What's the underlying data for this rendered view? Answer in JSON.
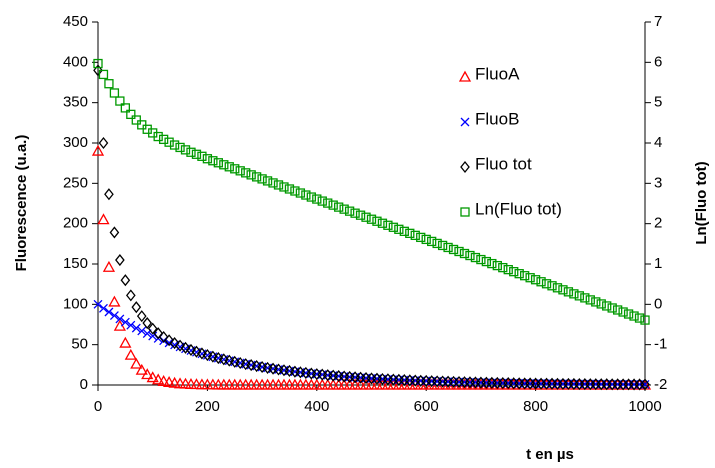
{
  "chart_data": {
    "type": "scatter",
    "xlabel": "t en µs",
    "ylabel": "Fluorescence (u.a.)",
    "y2label": "Ln(Fluo tot)",
    "legend": "upper right",
    "x": [
      0,
      10,
      20,
      30,
      40,
      50,
      60,
      70,
      80,
      90,
      100,
      110,
      120,
      130,
      140,
      150,
      160,
      170,
      180,
      190,
      200,
      210,
      220,
      230,
      240,
      250,
      260,
      270,
      280,
      290,
      300,
      310,
      320,
      330,
      340,
      350,
      360,
      370,
      380,
      390,
      400,
      410,
      420,
      430,
      440,
      450,
      460,
      470,
      480,
      490,
      500,
      510,
      520,
      530,
      540,
      550,
      560,
      570,
      580,
      590,
      600,
      610,
      620,
      630,
      640,
      650,
      660,
      670,
      680,
      690,
      700,
      710,
      720,
      730,
      740,
      750,
      760,
      770,
      780,
      790,
      800,
      810,
      820,
      830,
      840,
      850,
      860,
      870,
      880,
      890,
      900,
      910,
      920,
      930,
      940,
      950,
      960,
      970,
      980,
      990,
      1000
    ],
    "xlim": [
      0,
      1000
    ],
    "xticks": [
      0,
      200,
      400,
      600,
      800,
      1000
    ],
    "ylim": [
      0,
      450
    ],
    "yticks": [
      0,
      50,
      100,
      150,
      200,
      250,
      300,
      350,
      400,
      450
    ],
    "y2lim": [
      -2,
      7
    ],
    "y2ticks": [
      -2,
      -1,
      0,
      1,
      2,
      3,
      4,
      5,
      6,
      7
    ],
    "series": [
      {
        "name": "FluoA",
        "color": "#ff0000",
        "marker": "triangle",
        "values": [
          290,
          205,
          146,
          103,
          73,
          52,
          37,
          26,
          18.4,
          13,
          9.2,
          6.5,
          4.6,
          3.3,
          2.3,
          1.6,
          1.2,
          0.8,
          0.6,
          0.4,
          0.3,
          0.2,
          0.1,
          0.1,
          0.1,
          0,
          0,
          0,
          0,
          0,
          0,
          0,
          0,
          0,
          0,
          0,
          0,
          0,
          0,
          0,
          0,
          0,
          0,
          0,
          0,
          0,
          0,
          0,
          0,
          0,
          0,
          0,
          0,
          0,
          0,
          0,
          0,
          0,
          0,
          0,
          0,
          0,
          0,
          0,
          0,
          0,
          0,
          0,
          0,
          0,
          0,
          0,
          0,
          0,
          0,
          0,
          0,
          0,
          0,
          0,
          0,
          0,
          0,
          0,
          0,
          0,
          0,
          0,
          0,
          0,
          0,
          0,
          0,
          0,
          0,
          0,
          0,
          0,
          0,
          0,
          0
        ]
      },
      {
        "name": "FluoB",
        "color": "#0000ff",
        "marker": "x",
        "values": [
          100,
          95.1,
          90.5,
          86.1,
          81.9,
          77.9,
          74.1,
          70.5,
          67,
          63.8,
          60.7,
          57.7,
          54.9,
          52.2,
          49.7,
          47.2,
          44.9,
          42.7,
          40.7,
          38.7,
          36.8,
          35,
          33.3,
          31.7,
          30.1,
          28.7,
          27.3,
          25.9,
          24.7,
          23.5,
          22.3,
          21.2,
          20.2,
          19.2,
          18.3,
          17.4,
          16.5,
          15.7,
          15,
          14.2,
          13.5,
          12.9,
          12.2,
          11.6,
          11.1,
          10.5,
          10,
          9.5,
          9.1,
          8.6,
          8.2,
          7.8,
          7.4,
          7.1,
          6.7,
          6.4,
          6.1,
          5.8,
          5.5,
          5.2,
          5,
          4.7,
          4.5,
          4.3,
          4.1,
          3.9,
          3.7,
          3.5,
          3.3,
          3.2,
          3,
          2.9,
          2.7,
          2.6,
          2.5,
          2.4,
          2.2,
          2.1,
          2,
          1.9,
          1.8,
          1.7,
          1.7,
          1.6,
          1.5,
          1.4,
          1.4,
          1.3,
          1.2,
          1.2,
          1.1,
          1.1,
          1,
          1,
          0.9,
          0.9,
          0.8,
          0.8,
          0.7,
          0.7,
          0.7
        ]
      },
      {
        "name": "Fluo tot",
        "color": "#000000",
        "marker": "diamond",
        "values": [
          390,
          300,
          236.5,
          189.1,
          154.9,
          129.9,
          111.1,
          96.5,
          85.4,
          76.8,
          69.9,
          64.2,
          59.5,
          55.5,
          52,
          48.8,
          46.1,
          43.5,
          41.3,
          39.1,
          37.1,
          35.2,
          33.4,
          31.8,
          30.2,
          28.7,
          27.3,
          25.9,
          24.7,
          23.5,
          22.3,
          21.2,
          20.2,
          19.2,
          18.3,
          17.4,
          16.5,
          15.7,
          15,
          14.2,
          13.5,
          12.9,
          12.2,
          11.6,
          11.1,
          10.5,
          10,
          9.5,
          9.1,
          8.6,
          8.2,
          7.8,
          7.4,
          7.1,
          6.7,
          6.4,
          6.1,
          5.8,
          5.5,
          5.2,
          5,
          4.7,
          4.5,
          4.3,
          4.1,
          3.9,
          3.7,
          3.5,
          3.3,
          3.2,
          3,
          2.9,
          2.7,
          2.6,
          2.5,
          2.4,
          2.2,
          2.1,
          2,
          1.9,
          1.8,
          1.7,
          1.7,
          1.6,
          1.5,
          1.4,
          1.4,
          1.3,
          1.2,
          1.2,
          1.1,
          1.1,
          1,
          1,
          0.9,
          0.9,
          0.8,
          0.8,
          0.7,
          0.7,
          0.7
        ]
      },
      {
        "name": "Ln(Fluo tot)",
        "color": "#009900",
        "marker": "square",
        "axis": "y2",
        "values": [
          5.97,
          5.7,
          5.47,
          5.24,
          5.04,
          4.87,
          4.71,
          4.57,
          4.45,
          4.34,
          4.25,
          4.16,
          4.09,
          4.02,
          3.95,
          3.89,
          3.83,
          3.77,
          3.72,
          3.67,
          3.61,
          3.56,
          3.51,
          3.46,
          3.41,
          3.36,
          3.31,
          3.26,
          3.21,
          3.16,
          3.11,
          3.06,
          3.01,
          2.96,
          2.91,
          2.86,
          2.81,
          2.76,
          2.71,
          2.66,
          2.61,
          2.56,
          2.51,
          2.46,
          2.41,
          2.36,
          2.31,
          2.26,
          2.21,
          2.16,
          2.11,
          2.06,
          2.01,
          1.96,
          1.91,
          1.86,
          1.81,
          1.76,
          1.71,
          1.66,
          1.61,
          1.56,
          1.51,
          1.46,
          1.41,
          1.36,
          1.31,
          1.26,
          1.21,
          1.16,
          1.11,
          1.06,
          1.01,
          0.96,
          0.91,
          0.86,
          0.81,
          0.76,
          0.71,
          0.66,
          0.61,
          0.56,
          0.51,
          0.46,
          0.41,
          0.36,
          0.31,
          0.26,
          0.21,
          0.16,
          0.11,
          0.06,
          0.01,
          -0.04,
          -0.09,
          -0.14,
          -0.19,
          -0.24,
          -0.29,
          -0.34,
          -0.39
        ]
      }
    ]
  }
}
